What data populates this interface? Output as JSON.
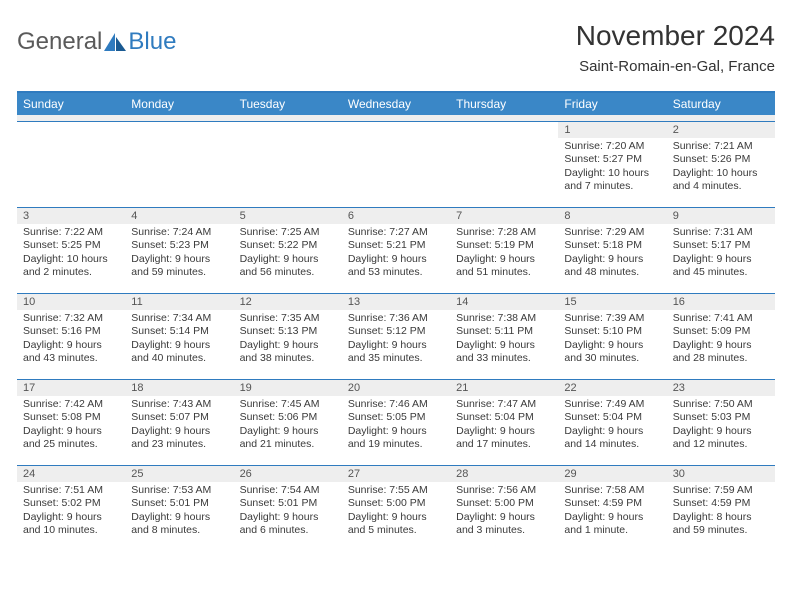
{
  "logo": {
    "text1": "General",
    "text2": "Blue"
  },
  "title": "November 2024",
  "location": "Saint-Romain-en-Gal, France",
  "colors": {
    "header_bg": "#3a87c7",
    "header_text": "#ffffff",
    "rule": "#2f7bbf",
    "daynum_bg": "#eeeeee",
    "text": "#333333"
  },
  "days_of_week": [
    "Sunday",
    "Monday",
    "Tuesday",
    "Wednesday",
    "Thursday",
    "Friday",
    "Saturday"
  ],
  "weeks": [
    [
      {
        "n": "",
        "sunrise": "",
        "sunset": "",
        "daylight": ""
      },
      {
        "n": "",
        "sunrise": "",
        "sunset": "",
        "daylight": ""
      },
      {
        "n": "",
        "sunrise": "",
        "sunset": "",
        "daylight": ""
      },
      {
        "n": "",
        "sunrise": "",
        "sunset": "",
        "daylight": ""
      },
      {
        "n": "",
        "sunrise": "",
        "sunset": "",
        "daylight": ""
      },
      {
        "n": "1",
        "sunrise": "Sunrise: 7:20 AM",
        "sunset": "Sunset: 5:27 PM",
        "daylight": "Daylight: 10 hours and 7 minutes."
      },
      {
        "n": "2",
        "sunrise": "Sunrise: 7:21 AM",
        "sunset": "Sunset: 5:26 PM",
        "daylight": "Daylight: 10 hours and 4 minutes."
      }
    ],
    [
      {
        "n": "3",
        "sunrise": "Sunrise: 7:22 AM",
        "sunset": "Sunset: 5:25 PM",
        "daylight": "Daylight: 10 hours and 2 minutes."
      },
      {
        "n": "4",
        "sunrise": "Sunrise: 7:24 AM",
        "sunset": "Sunset: 5:23 PM",
        "daylight": "Daylight: 9 hours and 59 minutes."
      },
      {
        "n": "5",
        "sunrise": "Sunrise: 7:25 AM",
        "sunset": "Sunset: 5:22 PM",
        "daylight": "Daylight: 9 hours and 56 minutes."
      },
      {
        "n": "6",
        "sunrise": "Sunrise: 7:27 AM",
        "sunset": "Sunset: 5:21 PM",
        "daylight": "Daylight: 9 hours and 53 minutes."
      },
      {
        "n": "7",
        "sunrise": "Sunrise: 7:28 AM",
        "sunset": "Sunset: 5:19 PM",
        "daylight": "Daylight: 9 hours and 51 minutes."
      },
      {
        "n": "8",
        "sunrise": "Sunrise: 7:29 AM",
        "sunset": "Sunset: 5:18 PM",
        "daylight": "Daylight: 9 hours and 48 minutes."
      },
      {
        "n": "9",
        "sunrise": "Sunrise: 7:31 AM",
        "sunset": "Sunset: 5:17 PM",
        "daylight": "Daylight: 9 hours and 45 minutes."
      }
    ],
    [
      {
        "n": "10",
        "sunrise": "Sunrise: 7:32 AM",
        "sunset": "Sunset: 5:16 PM",
        "daylight": "Daylight: 9 hours and 43 minutes."
      },
      {
        "n": "11",
        "sunrise": "Sunrise: 7:34 AM",
        "sunset": "Sunset: 5:14 PM",
        "daylight": "Daylight: 9 hours and 40 minutes."
      },
      {
        "n": "12",
        "sunrise": "Sunrise: 7:35 AM",
        "sunset": "Sunset: 5:13 PM",
        "daylight": "Daylight: 9 hours and 38 minutes."
      },
      {
        "n": "13",
        "sunrise": "Sunrise: 7:36 AM",
        "sunset": "Sunset: 5:12 PM",
        "daylight": "Daylight: 9 hours and 35 minutes."
      },
      {
        "n": "14",
        "sunrise": "Sunrise: 7:38 AM",
        "sunset": "Sunset: 5:11 PM",
        "daylight": "Daylight: 9 hours and 33 minutes."
      },
      {
        "n": "15",
        "sunrise": "Sunrise: 7:39 AM",
        "sunset": "Sunset: 5:10 PM",
        "daylight": "Daylight: 9 hours and 30 minutes."
      },
      {
        "n": "16",
        "sunrise": "Sunrise: 7:41 AM",
        "sunset": "Sunset: 5:09 PM",
        "daylight": "Daylight: 9 hours and 28 minutes."
      }
    ],
    [
      {
        "n": "17",
        "sunrise": "Sunrise: 7:42 AM",
        "sunset": "Sunset: 5:08 PM",
        "daylight": "Daylight: 9 hours and 25 minutes."
      },
      {
        "n": "18",
        "sunrise": "Sunrise: 7:43 AM",
        "sunset": "Sunset: 5:07 PM",
        "daylight": "Daylight: 9 hours and 23 minutes."
      },
      {
        "n": "19",
        "sunrise": "Sunrise: 7:45 AM",
        "sunset": "Sunset: 5:06 PM",
        "daylight": "Daylight: 9 hours and 21 minutes."
      },
      {
        "n": "20",
        "sunrise": "Sunrise: 7:46 AM",
        "sunset": "Sunset: 5:05 PM",
        "daylight": "Daylight: 9 hours and 19 minutes."
      },
      {
        "n": "21",
        "sunrise": "Sunrise: 7:47 AM",
        "sunset": "Sunset: 5:04 PM",
        "daylight": "Daylight: 9 hours and 17 minutes."
      },
      {
        "n": "22",
        "sunrise": "Sunrise: 7:49 AM",
        "sunset": "Sunset: 5:04 PM",
        "daylight": "Daylight: 9 hours and 14 minutes."
      },
      {
        "n": "23",
        "sunrise": "Sunrise: 7:50 AM",
        "sunset": "Sunset: 5:03 PM",
        "daylight": "Daylight: 9 hours and 12 minutes."
      }
    ],
    [
      {
        "n": "24",
        "sunrise": "Sunrise: 7:51 AM",
        "sunset": "Sunset: 5:02 PM",
        "daylight": "Daylight: 9 hours and 10 minutes."
      },
      {
        "n": "25",
        "sunrise": "Sunrise: 7:53 AM",
        "sunset": "Sunset: 5:01 PM",
        "daylight": "Daylight: 9 hours and 8 minutes."
      },
      {
        "n": "26",
        "sunrise": "Sunrise: 7:54 AM",
        "sunset": "Sunset: 5:01 PM",
        "daylight": "Daylight: 9 hours and 6 minutes."
      },
      {
        "n": "27",
        "sunrise": "Sunrise: 7:55 AM",
        "sunset": "Sunset: 5:00 PM",
        "daylight": "Daylight: 9 hours and 5 minutes."
      },
      {
        "n": "28",
        "sunrise": "Sunrise: 7:56 AM",
        "sunset": "Sunset: 5:00 PM",
        "daylight": "Daylight: 9 hours and 3 minutes."
      },
      {
        "n": "29",
        "sunrise": "Sunrise: 7:58 AM",
        "sunset": "Sunset: 4:59 PM",
        "daylight": "Daylight: 9 hours and 1 minute."
      },
      {
        "n": "30",
        "sunrise": "Sunrise: 7:59 AM",
        "sunset": "Sunset: 4:59 PM",
        "daylight": "Daylight: 8 hours and 59 minutes."
      }
    ]
  ]
}
